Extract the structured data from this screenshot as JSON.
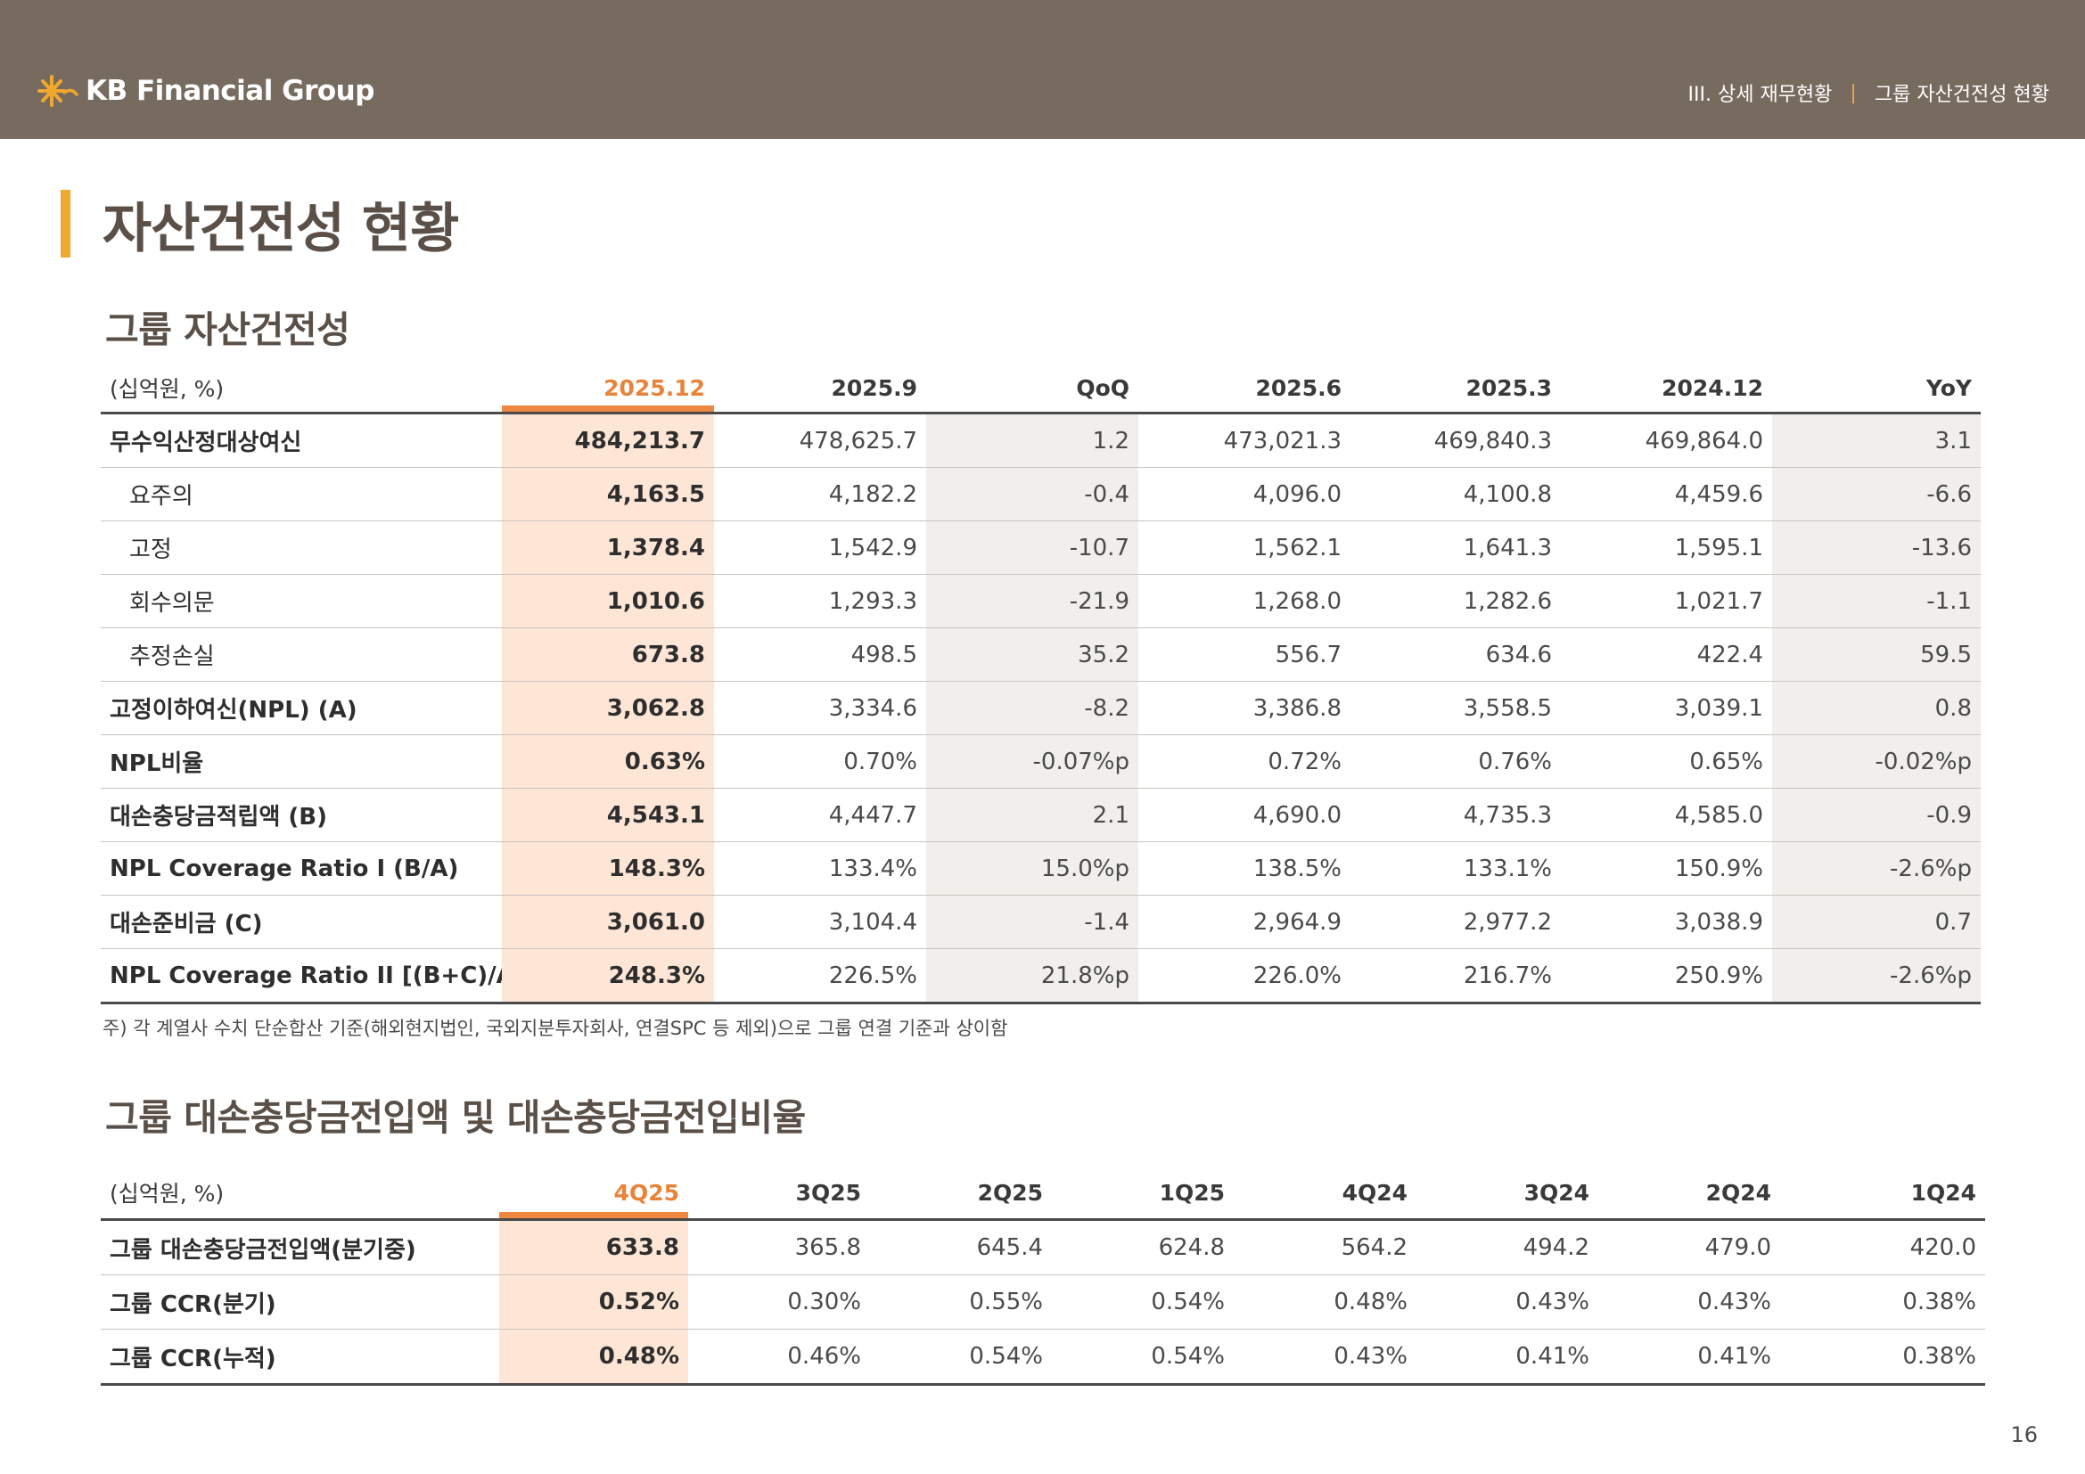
{
  "header": {
    "brand": "KB Financial Group",
    "breadcrumb": [
      "III. 상세 재무현황",
      "그룹 자산건전성 현황"
    ],
    "separator": "|"
  },
  "page_title": "자산건전성 현황",
  "asset_quality": {
    "title": "그룹 자산건전성",
    "unit": "(십억원, %)",
    "columns": [
      "2025.12",
      "2025.9",
      "QoQ",
      "2025.6",
      "2025.3",
      "2024.12",
      "YoY"
    ],
    "rows": [
      {
        "label": "무수익산정대상여신",
        "values": [
          "484,213.7",
          "478,625.7",
          "1.2",
          "473,021.3",
          "469,840.3",
          "469,864.0",
          "3.1"
        ]
      },
      {
        "label": "요주의",
        "values": [
          "4,163.5",
          "4,182.2",
          "-0.4",
          "4,096.0",
          "4,100.8",
          "4,459.6",
          "-6.6"
        ]
      },
      {
        "label": "고정",
        "values": [
          "1,378.4",
          "1,542.9",
          "-10.7",
          "1,562.1",
          "1,641.3",
          "1,595.1",
          "-13.6"
        ]
      },
      {
        "label": "회수의문",
        "values": [
          "1,010.6",
          "1,293.3",
          "-21.9",
          "1,268.0",
          "1,282.6",
          "1,021.7",
          "-1.1"
        ]
      },
      {
        "label": "추정손실",
        "values": [
          "673.8",
          "498.5",
          "35.2",
          "556.7",
          "634.6",
          "422.4",
          "59.5"
        ]
      },
      {
        "label": "고정이하여신(NPL) (A)",
        "values": [
          "3,062.8",
          "3,334.6",
          "-8.2",
          "3,386.8",
          "3,558.5",
          "3,039.1",
          "0.8"
        ]
      },
      {
        "label": "NPL비율",
        "values": [
          "0.63%",
          "0.70%",
          "-0.07%p",
          "0.72%",
          "0.76%",
          "0.65%",
          "-0.02%p"
        ]
      },
      {
        "label": "대손충당금적립액 (B)",
        "values": [
          "4,543.1",
          "4,447.7",
          "2.1",
          "4,690.0",
          "4,735.3",
          "4,585.0",
          "-0.9"
        ]
      },
      {
        "label": "NPL Coverage Ratio I (B/A)",
        "values": [
          "148.3%",
          "133.4%",
          "15.0%p",
          "138.5%",
          "133.1%",
          "150.9%",
          "-2.6%p"
        ]
      },
      {
        "label": "대손준비금 (C)",
        "values": [
          "3,061.0",
          "3,104.4",
          "-1.4",
          "2,964.9",
          "2,977.2",
          "3,038.9",
          "0.7"
        ]
      },
      {
        "label": "NPL Coverage Ratio II [(B+C)/A)]",
        "values": [
          "248.3%",
          "226.5%",
          "21.8%p",
          "226.0%",
          "216.7%",
          "250.9%",
          "-2.6%p"
        ]
      }
    ],
    "note": "주) 각 계열사 수치 단순합산 기준(해외현지법인, 국외지분투자회사, 연결SPC 등 제외)으로 그룹 연결 기준과 상이함"
  },
  "provision": {
    "title": "그룹 대손충당금전입액 및 대손충당금전입비율",
    "unit": "(십억원, %)",
    "columns": [
      "4Q25",
      "3Q25",
      "2Q25",
      "1Q25",
      "4Q24",
      "3Q24",
      "2Q24",
      "1Q24"
    ],
    "rows": [
      {
        "label": "그룹 대손충당금전입액(분기중)",
        "values": [
          "633.8",
          "365.8",
          "645.4",
          "624.8",
          "564.2",
          "494.2",
          "479.0",
          "420.0"
        ]
      },
      {
        "label": "그룹 CCR(분기)",
        "values": [
          "0.52%",
          "0.30%",
          "0.55%",
          "0.54%",
          "0.48%",
          "0.43%",
          "0.43%",
          "0.38%"
        ]
      },
      {
        "label": "그룹 CCR(누적)",
        "values": [
          "0.48%",
          "0.46%",
          "0.54%",
          "0.54%",
          "0.43%",
          "0.41%",
          "0.41%",
          "0.38%"
        ]
      }
    ]
  },
  "page_number": "16",
  "colors": {
    "header_bg": "#776a5e",
    "accent_orange": "#ee8840",
    "title_bar": "#f0a82e",
    "highlight": "#fde6d6"
  }
}
